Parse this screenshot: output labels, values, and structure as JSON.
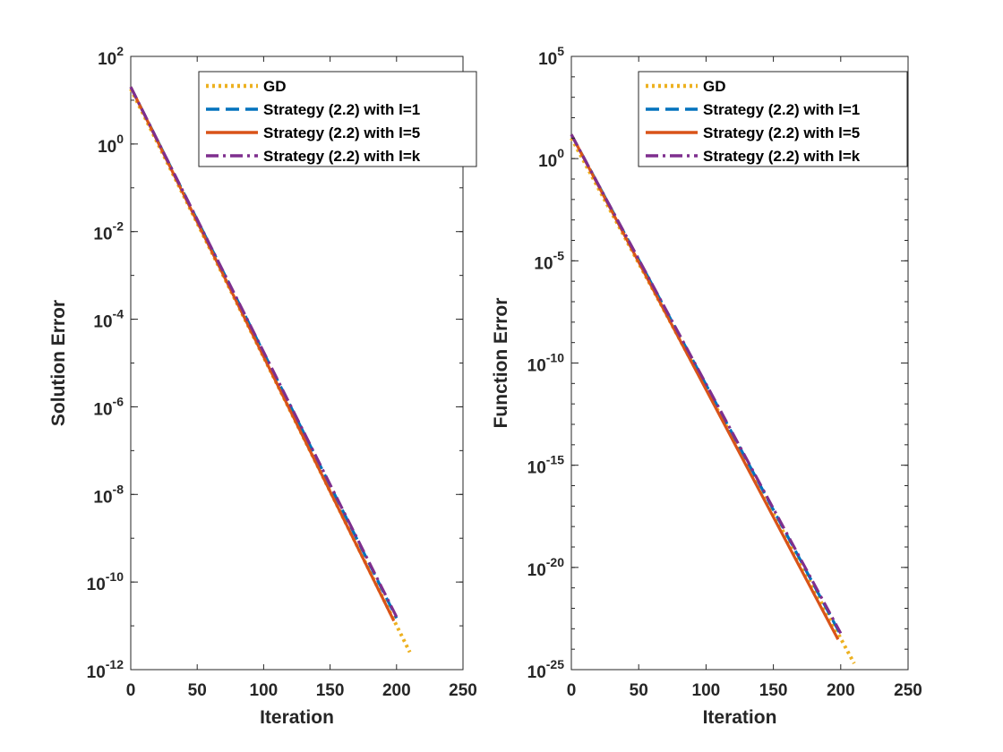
{
  "chart_data": [
    {
      "type": "line",
      "xlabel": "Iteration",
      "ylabel": "Solution Error",
      "xlim": [
        0,
        250
      ],
      "ylim_exponent": [
        -12,
        2
      ],
      "yscale": "log",
      "xticks": [
        "0",
        "50",
        "100",
        "150",
        "200",
        "250"
      ],
      "yticks": [
        {
          "base": "10",
          "exp": "2"
        },
        {
          "base": "10",
          "exp": "0"
        },
        {
          "base": "10",
          "exp": "-2"
        },
        {
          "base": "10",
          "exp": "-4"
        },
        {
          "base": "10",
          "exp": "-6"
        },
        {
          "base": "10",
          "exp": "-8"
        },
        {
          "base": "10",
          "exp": "-10"
        },
        {
          "base": "10",
          "exp": "-12"
        }
      ],
      "legend_position": "top-right",
      "series": [
        {
          "name": "GD",
          "color": "#EDB120",
          "style": "dotted",
          "points": [
            [
              0,
              18
            ],
            [
              210,
              2.5e-12
            ]
          ]
        },
        {
          "name": "Strategy (2.2) with l=1",
          "color": "#0072BD",
          "style": "dashed",
          "points": [
            [
              0,
              20
            ],
            [
              200,
              1.5e-11
            ]
          ]
        },
        {
          "name": "Strategy (2.2) with l=5",
          "color": "#D95319",
          "style": "solid",
          "points": [
            [
              0,
              20
            ],
            [
              198,
              1.3e-11
            ]
          ]
        },
        {
          "name": "Strategy (2.2) with l=k",
          "color": "#7E2F8E",
          "style": "dashdot",
          "points": [
            [
              0,
              20
            ],
            [
              200,
              1.6e-11
            ]
          ]
        }
      ]
    },
    {
      "type": "line",
      "xlabel": "Iteration",
      "ylabel": "Function Error",
      "xlim": [
        0,
        250
      ],
      "ylim_exponent": [
        -25,
        5
      ],
      "yscale": "log",
      "xticks": [
        "0",
        "50",
        "100",
        "150",
        "200",
        "250"
      ],
      "yticks": [
        {
          "base": "10",
          "exp": "5"
        },
        {
          "base": "10",
          "exp": "0"
        },
        {
          "base": "10",
          "exp": "-5"
        },
        {
          "base": "10",
          "exp": "-10"
        },
        {
          "base": "10",
          "exp": "-15"
        },
        {
          "base": "10",
          "exp": "-20"
        },
        {
          "base": "10",
          "exp": "-25"
        }
      ],
      "legend_position": "top-right",
      "series": [
        {
          "name": "GD",
          "color": "#EDB120",
          "style": "dotted",
          "points": [
            [
              0,
              10
            ],
            [
              210,
              2e-25
            ]
          ]
        },
        {
          "name": "Strategy (2.2) with l=1",
          "color": "#0072BD",
          "style": "dashed",
          "points": [
            [
              0,
              15
            ],
            [
              200,
              5e-24
            ]
          ]
        },
        {
          "name": "Strategy (2.2) with l=5",
          "color": "#D95319",
          "style": "solid",
          "points": [
            [
              0,
              15
            ],
            [
              198,
              3e-24
            ]
          ]
        },
        {
          "name": "Strategy (2.2) with l=k",
          "color": "#7E2F8E",
          "style": "dashdot",
          "points": [
            [
              0,
              15
            ],
            [
              200,
              6e-24
            ]
          ]
        }
      ]
    }
  ]
}
